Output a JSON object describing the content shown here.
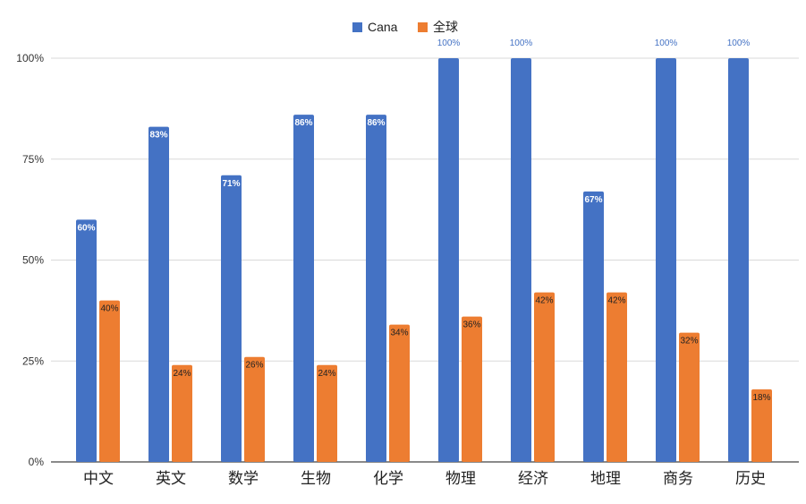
{
  "chart_data": {
    "type": "bar",
    "categories": [
      "中文",
      "英文",
      "数学",
      "生物",
      "化学",
      "物理",
      "经济",
      "地理",
      "商务",
      "历史"
    ],
    "series": [
      {
        "name": "Cana",
        "color": "#4472c4",
        "values": [
          60,
          83,
          71,
          86,
          86,
          100,
          100,
          67,
          100,
          100
        ]
      },
      {
        "name": "全球",
        "color": "#ed7d31",
        "values": [
          40,
          24,
          26,
          24,
          34,
          36,
          42,
          42,
          32,
          18
        ]
      }
    ],
    "data_labels": {
      "Cana": [
        "60%",
        "83%",
        "71%",
        "86%",
        "86%",
        "100%",
        "100%",
        "67%",
        "100%",
        "100%"
      ],
      "全球": [
        "40%",
        "24%",
        "26%",
        "24%",
        "34%",
        "36%",
        "42%",
        "42%",
        "32%",
        "18%"
      ]
    },
    "ylim": [
      0,
      100
    ],
    "yticks": [
      "0%",
      "25%",
      "50%",
      "75%",
      "100%"
    ],
    "ytick_values": [
      0,
      25,
      50,
      75,
      100
    ],
    "grid": true,
    "legend_position": "top-center",
    "title": "",
    "xlabel": "",
    "ylabel": ""
  }
}
